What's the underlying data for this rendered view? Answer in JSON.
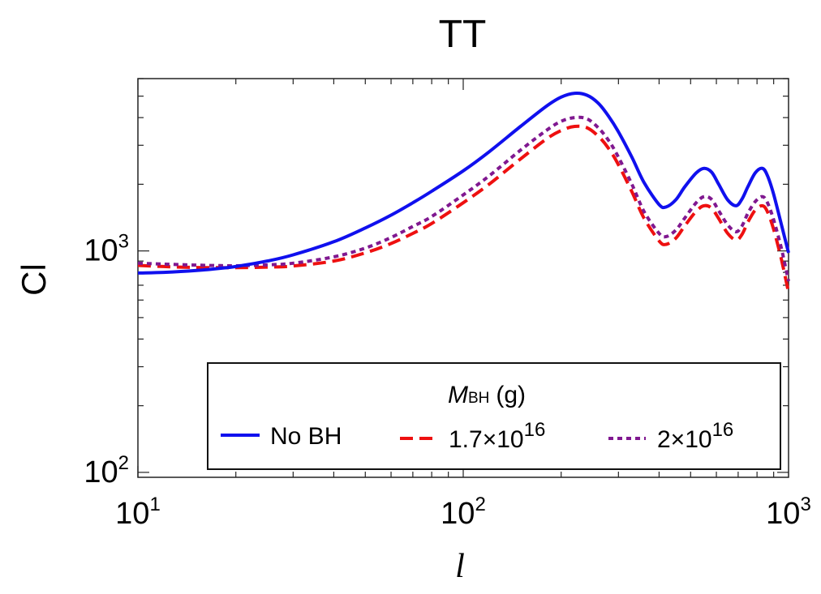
{
  "chart_data": {
    "type": "line",
    "title": "TT",
    "xlabel": "l",
    "ylabel": "Cl",
    "x_scale": "log",
    "y_scale": "log",
    "xlim": [
      10,
      1000
    ],
    "ylim": [
      95,
      6000
    ],
    "grid": false,
    "x_ticks": [
      {
        "base": "10",
        "exp": "1",
        "value": 10
      },
      {
        "base": "10",
        "exp": "2",
        "value": 100
      },
      {
        "base": "10",
        "exp": "3",
        "value": 1000
      }
    ],
    "y_ticks": [
      {
        "base": "10",
        "exp": "2",
        "value": 100
      },
      {
        "base": "10",
        "exp": "3",
        "value": 1000
      }
    ],
    "legend": {
      "placement": "bottom-right",
      "title_main": "M",
      "title_sub": "BH",
      "title_unit": "(g)"
    },
    "series": [
      {
        "name": "No BH",
        "label_text": "No BH",
        "color": "#1010ee",
        "dash": "solid",
        "x": [
          10,
          12,
          15,
          18,
          20,
          25,
          30,
          40,
          50,
          60,
          70,
          80,
          100,
          120,
          150,
          180,
          200,
          220,
          240,
          260,
          280,
          300,
          330,
          360,
          400,
          420,
          450,
          480,
          520,
          550,
          580,
          610,
          650,
          690,
          720,
          750,
          790,
          830,
          860,
          900,
          950,
          1000
        ],
        "y": [
          795,
          800,
          815,
          835,
          850,
          900,
          960,
          1100,
          1270,
          1450,
          1650,
          1860,
          2300,
          2800,
          3650,
          4500,
          4950,
          5150,
          5050,
          4650,
          4050,
          3450,
          2650,
          2030,
          1620,
          1580,
          1700,
          1950,
          2250,
          2360,
          2270,
          2000,
          1700,
          1600,
          1720,
          1950,
          2250,
          2360,
          2200,
          1800,
          1320,
          980
        ]
      },
      {
        "name": "1.7×10^16",
        "label_base": "1.7×10",
        "label_exp": "16",
        "color": "#ee1010",
        "dash": "long",
        "x": [
          10,
          12,
          15,
          18,
          20,
          25,
          30,
          40,
          50,
          60,
          70,
          80,
          100,
          120,
          150,
          180,
          200,
          220,
          240,
          260,
          280,
          300,
          330,
          360,
          400,
          420,
          450,
          480,
          520,
          550,
          580,
          610,
          650,
          690,
          720,
          750,
          790,
          830,
          860,
          900,
          950,
          1000
        ],
        "y": [
          860,
          850,
          842,
          840,
          840,
          845,
          855,
          900,
          980,
          1080,
          1200,
          1330,
          1650,
          2000,
          2600,
          3200,
          3500,
          3650,
          3600,
          3300,
          2900,
          2450,
          1850,
          1400,
          1110,
          1070,
          1140,
          1300,
          1510,
          1600,
          1560,
          1400,
          1200,
          1120,
          1190,
          1350,
          1530,
          1600,
          1510,
          1250,
          920,
          650
        ]
      },
      {
        "name": "2×10^16",
        "label_base": "2×10",
        "label_exp": "16",
        "color": "#801890",
        "dash": "short",
        "x": [
          10,
          12,
          15,
          18,
          20,
          25,
          30,
          40,
          50,
          60,
          70,
          80,
          100,
          120,
          150,
          180,
          200,
          220,
          240,
          260,
          280,
          300,
          330,
          360,
          400,
          420,
          450,
          480,
          520,
          550,
          580,
          610,
          650,
          690,
          720,
          750,
          790,
          830,
          860,
          900,
          950,
          1000
        ],
        "y": [
          880,
          872,
          863,
          858,
          857,
          865,
          880,
          940,
          1030,
          1150,
          1290,
          1430,
          1790,
          2180,
          2850,
          3500,
          3850,
          4000,
          3950,
          3600,
          3150,
          2650,
          2000,
          1500,
          1200,
          1160,
          1240,
          1410,
          1650,
          1760,
          1710,
          1520,
          1310,
          1220,
          1300,
          1480,
          1670,
          1760,
          1660,
          1380,
          1030,
          730
        ]
      }
    ]
  }
}
